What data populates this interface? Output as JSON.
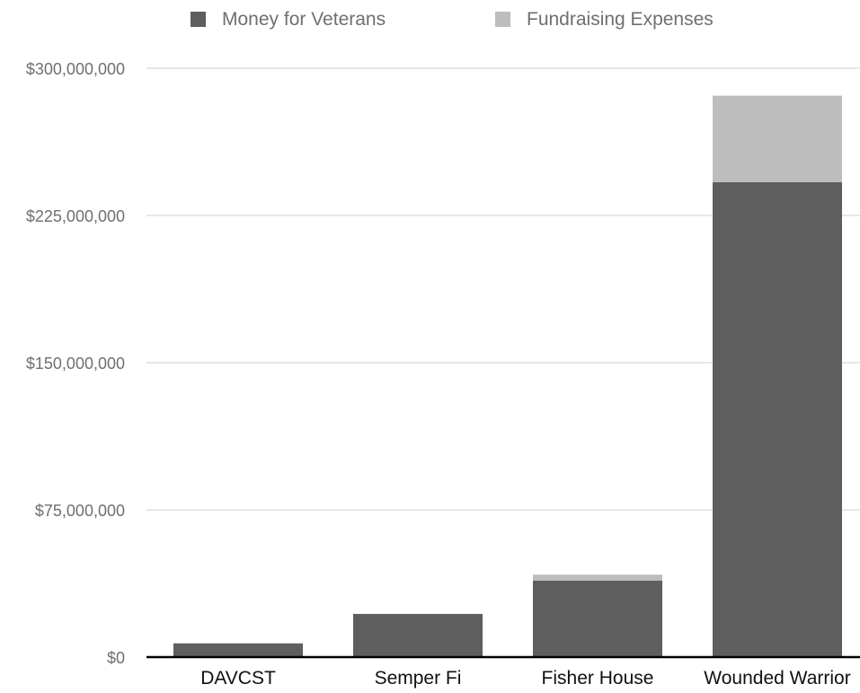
{
  "chart_data": {
    "type": "bar",
    "stacked": true,
    "categories": [
      "DAVCST",
      "Semper Fi",
      "Fisher House",
      "Wounded Warrior"
    ],
    "series": [
      {
        "name": "Money for Veterans",
        "color": "#5e5e5e",
        "values": [
          7000000,
          22000000,
          39000000,
          242000000
        ]
      },
      {
        "name": "Fundraising Expenses",
        "color": "#bdbdbd",
        "values": [
          0,
          0,
          3000000,
          44000000
        ]
      }
    ],
    "y_ticks": [
      {
        "value": 300000000,
        "label": "$300,000,000"
      },
      {
        "value": 225000000,
        "label": "$225,000,000"
      },
      {
        "value": 150000000,
        "label": "$150,000,000"
      },
      {
        "value": 75000000,
        "label": "$75,000,000"
      },
      {
        "value": 0,
        "label": "$0"
      }
    ],
    "ylim": [
      0,
      300000000
    ],
    "grid": true,
    "legend_position": "top",
    "title": "",
    "xlabel": "",
    "ylabel": ""
  }
}
